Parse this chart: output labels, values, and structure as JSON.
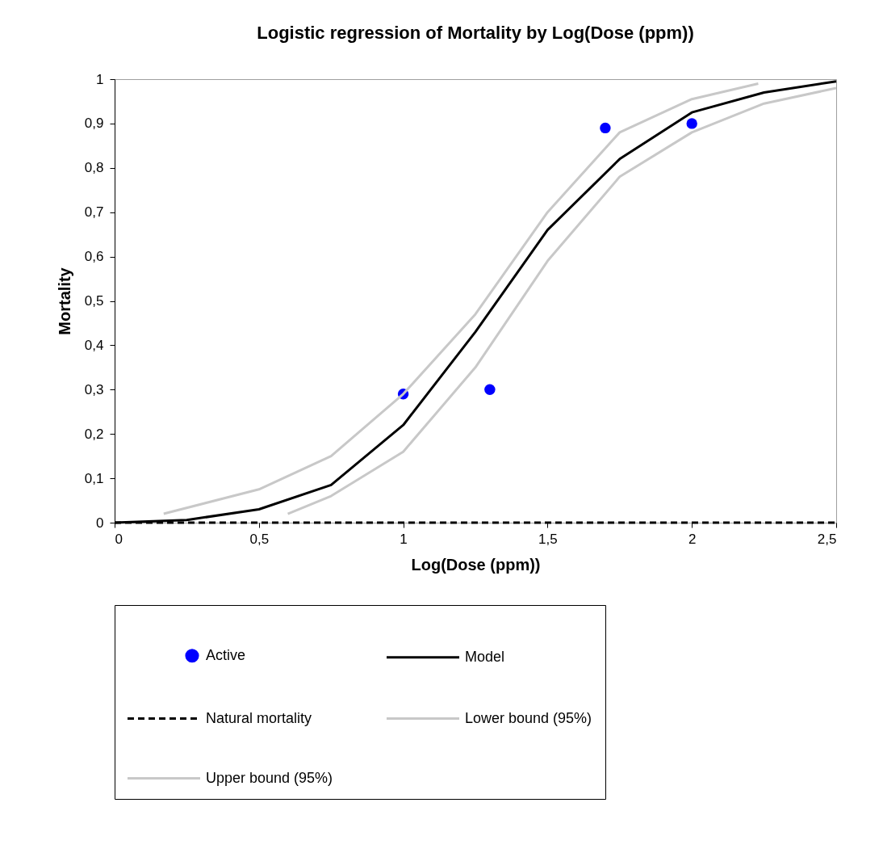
{
  "chart_data": {
    "type": "line",
    "title": "Logistic regression of Mortality by Log(Dose (ppm))",
    "xlabel": "Log(Dose (ppm))",
    "ylabel": "Mortality",
    "xlim": [
      0,
      2.5
    ],
    "ylim": [
      0,
      1
    ],
    "xticks": [
      0,
      {
        "value": 0.5,
        "label": "0,5"
      },
      1,
      {
        "value": 1.5,
        "label": "1,5"
      },
      2,
      {
        "value": 2.5,
        "label": "2,5"
      }
    ],
    "yticks": [
      0,
      {
        "value": 0.1,
        "label": "0,1"
      },
      {
        "value": 0.2,
        "label": "0,2"
      },
      {
        "value": 0.3,
        "label": "0,3"
      },
      {
        "value": 0.4,
        "label": "0,4"
      },
      {
        "value": 0.5,
        "label": "0,5"
      },
      {
        "value": 0.6,
        "label": "0,6"
      },
      {
        "value": 0.7,
        "label": "0,7"
      },
      {
        "value": 0.8,
        "label": "0,8"
      },
      {
        "value": 0.9,
        "label": "0,9"
      },
      1
    ],
    "grid": false,
    "legend": "bottom",
    "series": [
      {
        "name": "Active",
        "type": "scatter",
        "marker": "circle",
        "color": "#0000ff",
        "x": [
          1,
          1.3,
          1.7,
          2
        ],
        "values": [
          0.29,
          0.3,
          0.89,
          0.9
        ]
      },
      {
        "name": "Model",
        "line_style": "solid",
        "color": "#000000",
        "x": [
          0,
          0.25,
          0.5,
          0.75,
          1,
          1.25,
          1.5,
          1.75,
          2,
          2.25,
          2.5
        ],
        "values": [
          0,
          0.006,
          0.03,
          0.085,
          0.22,
          0.43,
          0.66,
          0.82,
          0.925,
          0.97,
          0.995
        ]
      },
      {
        "name": "Natural mortality",
        "line_style": "dashed",
        "color": "#000000",
        "x": [
          0,
          2.5
        ],
        "values": [
          0,
          0
        ]
      },
      {
        "name": "Lower bound (95%)",
        "line_style": "solid",
        "color": "#c8c8c8",
        "x": [
          0.6,
          0.75,
          1,
          1.25,
          1.5,
          1.75,
          2,
          2.25,
          2.5
        ],
        "values": [
          0.02,
          0.06,
          0.16,
          0.35,
          0.59,
          0.78,
          0.88,
          0.945,
          0.98
        ]
      },
      {
        "name": "Upper bound (95%)",
        "line_style": "solid",
        "color": "#c8c8c8",
        "x": [
          0.17,
          0.5,
          0.75,
          1,
          1.25,
          1.5,
          1.75,
          2,
          2.23
        ],
        "values": [
          0.02,
          0.075,
          0.15,
          0.29,
          0.47,
          0.7,
          0.88,
          0.955,
          0.99
        ]
      }
    ]
  }
}
